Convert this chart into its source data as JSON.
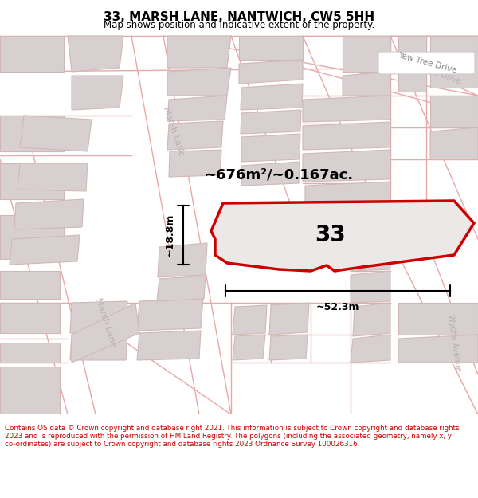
{
  "title": "33, MARSH LANE, NANTWICH, CW5 5HH",
  "subtitle": "Map shows position and indicative extent of the property.",
  "footer": "Contains OS data © Crown copyright and database right 2021. This information is subject to Crown copyright and database rights 2023 and is reproduced with the permission of HM Land Registry. The polygons (including the associated geometry, namely x, y co-ordinates) are subject to Crown copyright and database rights 2023 Ordnance Survey 100026316.",
  "map_bg": "#ffffff",
  "property_fill": "#ede8e8",
  "property_outline": "#cc0000",
  "road_line_color": "#e8a8a8",
  "building_fill": "#d8d0d0",
  "building_outline": "#d0b8b8",
  "street_label_color": "#b8b0b0",
  "area_label": "~676m²/~0.167ac.",
  "number_label": "33",
  "dim_width": "~52.3m",
  "dim_height": "~18.8m",
  "road_label_upper": "Marsh Lane",
  "road_label_lower": "Marsh Lane",
  "road_label_yew": "Yew Tree Drive",
  "road_label_wyche": "Wyche Avenue"
}
